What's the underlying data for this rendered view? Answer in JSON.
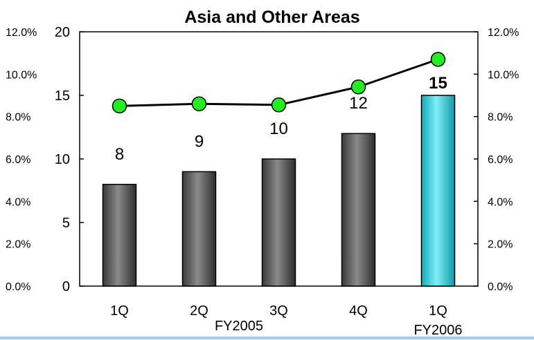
{
  "chart_data": {
    "type": "bar",
    "title": "Asia and Other Areas",
    "categories": [
      "1Q",
      "2Q",
      "3Q",
      "4Q",
      "1Q"
    ],
    "groups": [
      {
        "label": "FY2005",
        "from": 0,
        "to": 3
      },
      {
        "label": "FY2006",
        "from": 4,
        "to": 4
      }
    ],
    "values": [
      8,
      9,
      10,
      12,
      15
    ],
    "value_labels": [
      "8",
      "9",
      "10",
      "12",
      "15"
    ],
    "ratio_values": [
      8.5,
      8.6,
      8.55,
      9.4,
      10.7
    ],
    "ylim": [
      0,
      20
    ],
    "y_ticks": [
      "0",
      "5",
      "10",
      "15",
      "20"
    ],
    "y2lim": [
      0,
      12
    ],
    "y2_ticks": [
      "0.0%",
      "2.0%",
      "4.0%",
      "6.0%",
      "8.0%",
      "10.0%",
      "12.0%"
    ],
    "colors": {
      "bar": "#555555",
      "bar_highlight": "#22c8d8",
      "line": "#000000",
      "marker": "#22ee22",
      "bottom_rule": "#9ad0ea"
    }
  }
}
